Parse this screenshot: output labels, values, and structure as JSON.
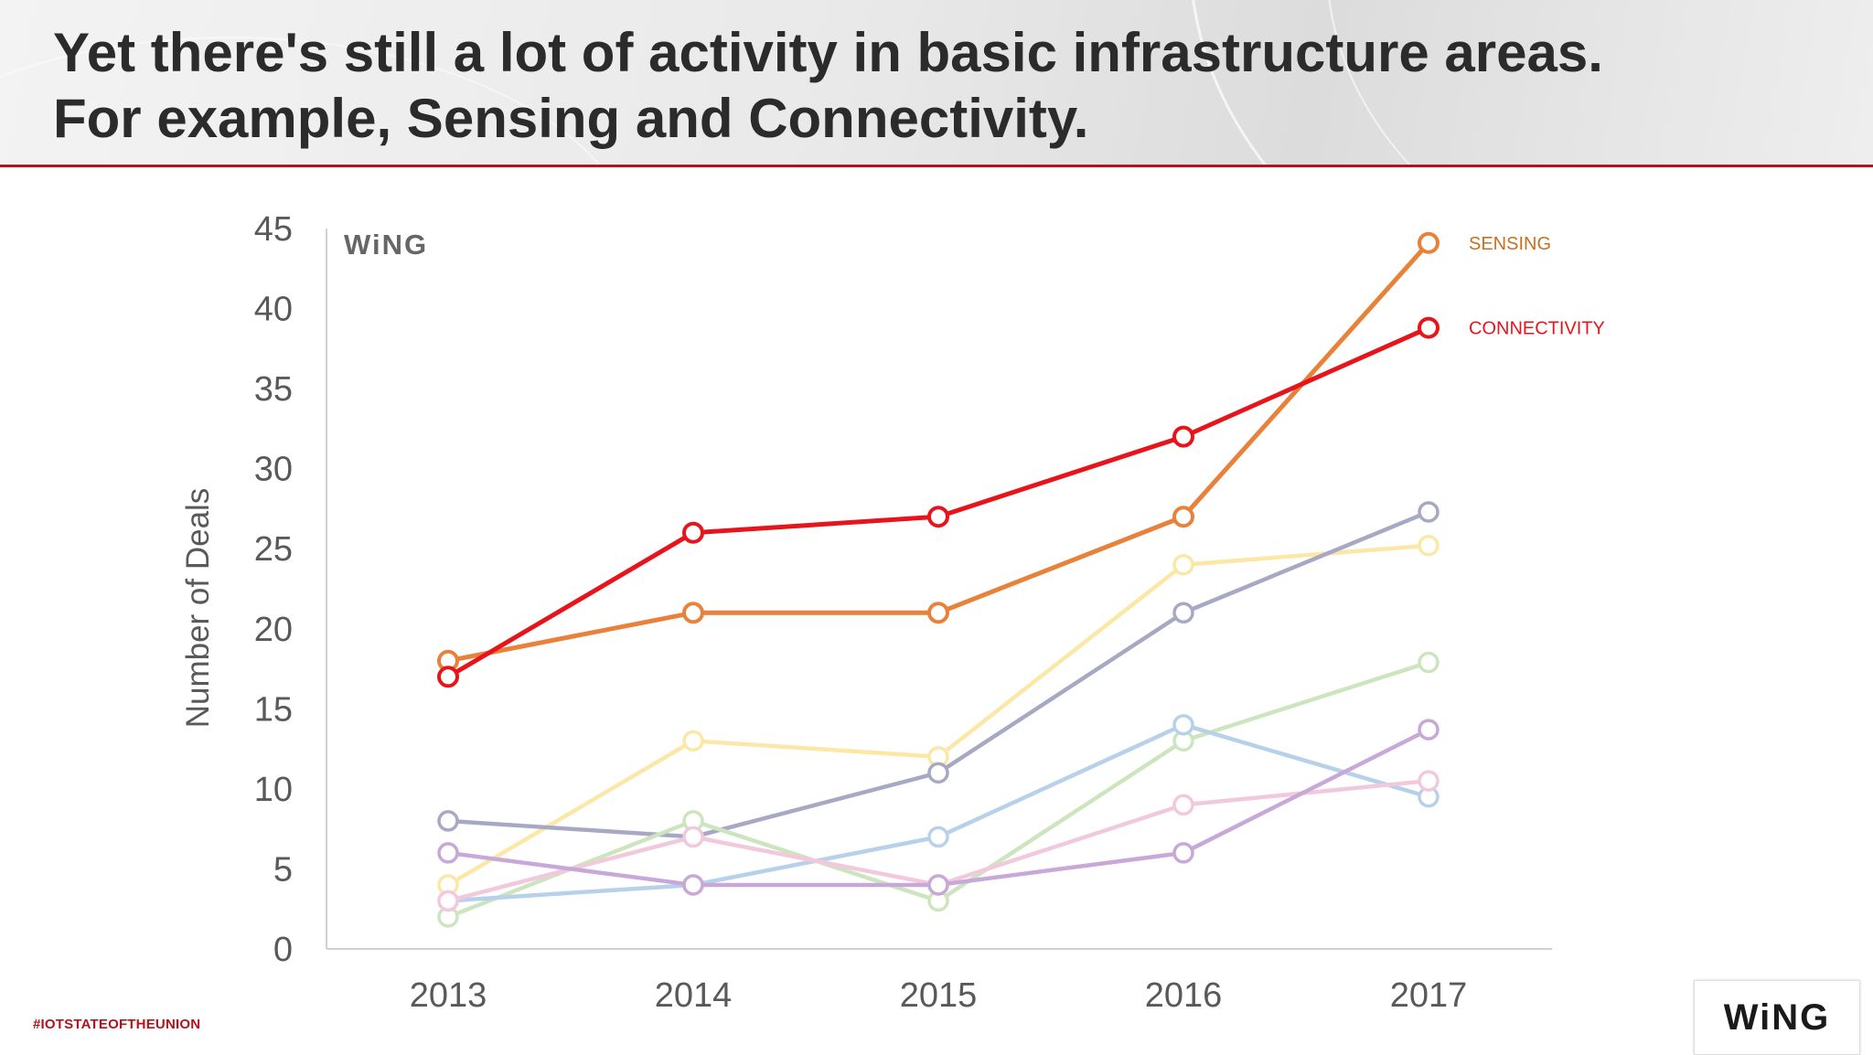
{
  "slide": {
    "title_line1": "Yet there's still a lot of activity in basic infrastructure areas.",
    "title_line2": "For example, Sensing and Connectivity.",
    "hashtag": "#IOTSTATEOFTHEUNION",
    "brand": "WiNG",
    "chart_watermark": "WiNG"
  },
  "colors": {
    "accent_red": "#b5121b",
    "sensing": "#e8813a",
    "connectivity": "#e8141c"
  },
  "chart_data": {
    "type": "line",
    "title": "",
    "xlabel": "",
    "ylabel": "Number of Deals",
    "x": [
      "2013",
      "2014",
      "2015",
      "2016",
      "2017"
    ],
    "ylim": [
      0,
      45
    ],
    "yticks": [
      0,
      5,
      10,
      15,
      20,
      25,
      30,
      35,
      40,
      45
    ],
    "grid": false,
    "series": [
      {
        "name": "",
        "color": "#fbe7a6",
        "values": [
          4,
          13,
          12,
          24,
          25.2
        ]
      },
      {
        "name": "",
        "color": "#a7a9c4",
        "values": [
          8,
          7,
          11,
          21,
          27.3
        ]
      },
      {
        "name": "",
        "color": "#cde5bf",
        "values": [
          2,
          8,
          3,
          13,
          17.9
        ]
      },
      {
        "name": "",
        "color": "#b7d1ea",
        "values": [
          3,
          4,
          7,
          14,
          9.5
        ]
      },
      {
        "name": "",
        "color": "#f2c9dc",
        "values": [
          3,
          7,
          4,
          9,
          10.5
        ]
      },
      {
        "name": "",
        "color": "#c7a8d8",
        "values": [
          6,
          4,
          4,
          6,
          13.7
        ]
      },
      {
        "name": "SENSING",
        "color": "#e8813a",
        "values": [
          18,
          21,
          21,
          27,
          44.1
        ]
      },
      {
        "name": "CONNECTIVITY",
        "color": "#e8141c",
        "values": [
          17,
          26,
          27,
          32,
          38.8
        ]
      }
    ]
  }
}
